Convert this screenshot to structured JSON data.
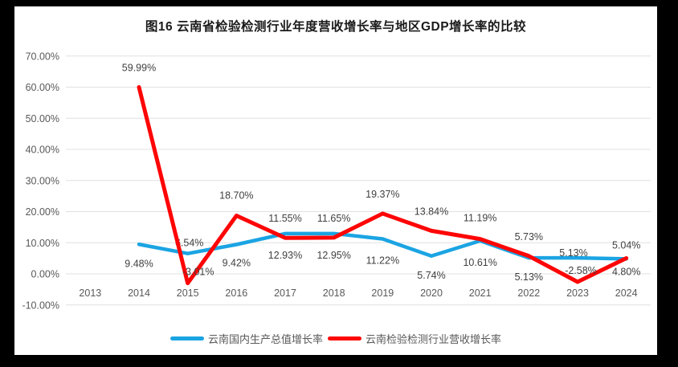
{
  "frame": {
    "background": "#000000",
    "card_background": "#ffffff",
    "gridline_color": "#e0e0e0",
    "axis_text_color": "#595959",
    "data_label_color": "#3f3f3f"
  },
  "title": "图16  云南省检验检测行业年度营收增长率与地区GDP增长率的比较",
  "legend": {
    "items": [
      {
        "label": "云南国内生产总值增长率",
        "color": "#1BA4E3"
      },
      {
        "label": "云南检验检测行业营收增长率",
        "color": "#FE0505"
      }
    ]
  },
  "chart_data": {
    "type": "line",
    "title": "图16  云南省检验检测行业年度营收增长率与地区GDP增长率的比较",
    "xlabel": "",
    "ylabel": "",
    "grid": true,
    "legend_position": "bottom",
    "categories": [
      "2013",
      "2014",
      "2015",
      "2016",
      "2017",
      "2018",
      "2019",
      "2020",
      "2021",
      "2022",
      "2023",
      "2024"
    ],
    "y_axis": {
      "min": -10,
      "max": 70,
      "step": 10,
      "format": "percent",
      "ticks": [
        {
          "value": 70,
          "label": "70.00%"
        },
        {
          "value": 60,
          "label": "60.00%"
        },
        {
          "value": 50,
          "label": "50.00%"
        },
        {
          "value": 40,
          "label": "40.00%"
        },
        {
          "value": 30,
          "label": "30.00%"
        },
        {
          "value": 20,
          "label": "20.00%"
        },
        {
          "value": 10,
          "label": "10.00%"
        },
        {
          "value": 0,
          "label": "0.00%"
        },
        {
          "value": -10,
          "label": "-10.00%"
        }
      ]
    },
    "series": [
      {
        "id": "gdp-line",
        "name": "云南国内生产总值增长率",
        "color": "#1BA4E3",
        "stroke_width": 4.5,
        "values": [
          null,
          9.48,
          6.54,
          9.42,
          12.93,
          12.95,
          11.22,
          5.74,
          10.61,
          5.13,
          5.13,
          4.8
        ],
        "labels": [
          "",
          "9.48%",
          "6.54%",
          "9.42%",
          "12.93%",
          "12.95%",
          "11.22%",
          "5.74%",
          "10.61%",
          "5.13%",
          "5.13%",
          "4.80%"
        ],
        "label_dy": [
          0,
          28,
          -9,
          27,
          31,
          31,
          31,
          28,
          31,
          28,
          -2,
          20
        ],
        "label_dx": [
          0,
          0,
          2,
          0,
          0,
          0,
          0,
          0,
          0,
          0,
          -5,
          0
        ]
      },
      {
        "id": "revenue-line",
        "name": "云南检验检测行业营收增长率",
        "color": "#FE0505",
        "stroke_width": 5,
        "values": [
          null,
          59.99,
          -3.01,
          18.7,
          11.55,
          11.65,
          19.37,
          13.84,
          11.19,
          5.73,
          -2.58,
          5.04
        ],
        "labels": [
          "",
          "59.99%",
          "-3.01%",
          "18.70%",
          "11.55%",
          "11.65%",
          "19.37%",
          "13.84%",
          "11.19%",
          "5.73%",
          "-2.58%",
          "5.04%"
        ],
        "label_dy": [
          0,
          -20,
          -10,
          -21,
          -20,
          -20,
          -20,
          -20,
          -22,
          -20,
          -10,
          -12
        ],
        "label_dx": [
          0,
          0,
          13,
          0,
          0,
          0,
          0,
          0,
          0,
          0,
          4,
          0
        ]
      }
    ]
  }
}
